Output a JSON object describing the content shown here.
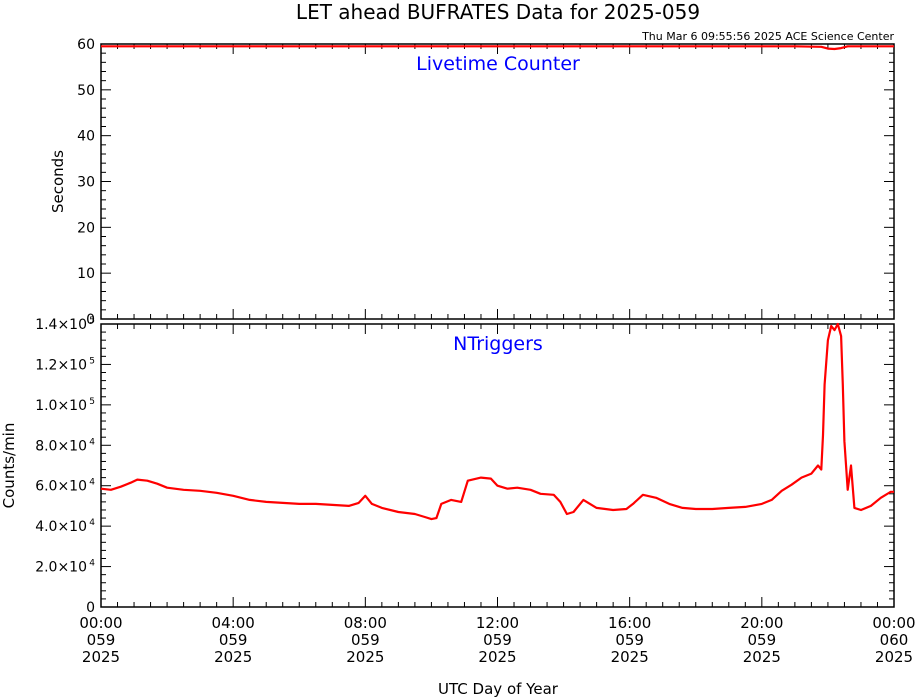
{
  "header": {
    "title": "LET ahead BUFRATES Data for 2025-059",
    "timestamp": "Thu Mar  6 09:55:56 2025 ACE Science Center"
  },
  "colors": {
    "axis": "#000000",
    "series": "#ff0000",
    "panel_label": "#0000ff"
  },
  "xaxis": {
    "label": "UTC Day of Year",
    "ticks": [
      {
        "time": "00:00",
        "doy": "059",
        "year": "2025"
      },
      {
        "time": "04:00",
        "doy": "059",
        "year": "2025"
      },
      {
        "time": "08:00",
        "doy": "059",
        "year": "2025"
      },
      {
        "time": "12:00",
        "doy": "059",
        "year": "2025"
      },
      {
        "time": "16:00",
        "doy": "059",
        "year": "2025"
      },
      {
        "time": "20:00",
        "doy": "059",
        "year": "2025"
      },
      {
        "time": "00:00",
        "doy": "060",
        "year": "2025"
      }
    ]
  },
  "chart_data": [
    {
      "type": "line",
      "panel_label": "Livetime Counter",
      "ylabel": "Seconds",
      "xlim": [
        0,
        24
      ],
      "ylim": [
        0,
        60
      ],
      "yticks": [
        {
          "value": 0,
          "base": "0"
        },
        {
          "value": 10,
          "base": "10"
        },
        {
          "value": 20,
          "base": "20"
        },
        {
          "value": 30,
          "base": "30"
        },
        {
          "value": 40,
          "base": "40"
        },
        {
          "value": 50,
          "base": "50"
        },
        {
          "value": 60,
          "base": "60"
        }
      ],
      "series": [
        {
          "x": [
            0,
            1,
            2,
            3,
            4,
            5,
            6,
            7,
            8,
            9,
            10,
            11,
            12,
            13,
            14,
            15,
            16,
            17,
            18,
            19,
            20,
            21,
            21.8,
            22.0,
            22.2,
            22.4,
            22.6,
            23,
            24
          ],
          "y": [
            59.5,
            59.5,
            59.5,
            59.5,
            59.5,
            59.5,
            59.5,
            59.5,
            59.5,
            59.5,
            59.5,
            59.5,
            59.5,
            59.5,
            59.5,
            59.5,
            59.5,
            59.5,
            59.5,
            59.5,
            59.5,
            59.5,
            59.4,
            59.0,
            58.9,
            59.1,
            59.5,
            59.5,
            59.5
          ]
        }
      ]
    },
    {
      "type": "line",
      "panel_label": "NTriggers",
      "ylabel": "Counts/min",
      "xlim": [
        0,
        24
      ],
      "ylim": [
        0,
        140000
      ],
      "yticks": [
        {
          "value": 0,
          "base": "0",
          "exp": ""
        },
        {
          "value": 20000,
          "base": "2.0×10",
          "exp": "4"
        },
        {
          "value": 40000,
          "base": "4.0×10",
          "exp": "4"
        },
        {
          "value": 60000,
          "base": "6.0×10",
          "exp": "4"
        },
        {
          "value": 80000,
          "base": "8.0×10",
          "exp": "4"
        },
        {
          "value": 100000,
          "base": "1.0×10",
          "exp": "5"
        },
        {
          "value": 120000,
          "base": "1.2×10",
          "exp": "5"
        },
        {
          "value": 140000,
          "base": "1.4×10",
          "exp": "5"
        }
      ],
      "series": [
        {
          "x": [
            0,
            0.3,
            0.6,
            0.9,
            1.1,
            1.4,
            1.7,
            2.0,
            2.5,
            3.0,
            3.5,
            4.0,
            4.5,
            5.0,
            5.5,
            6.0,
            6.5,
            7.0,
            7.5,
            7.8,
            8.0,
            8.2,
            8.5,
            9.0,
            9.5,
            9.8,
            10.0,
            10.15,
            10.3,
            10.6,
            10.9,
            11.1,
            11.5,
            11.8,
            12.0,
            12.3,
            12.6,
            13.0,
            13.3,
            13.7,
            13.9,
            14.1,
            14.3,
            14.6,
            15.0,
            15.5,
            15.9,
            16.1,
            16.4,
            16.8,
            17.2,
            17.6,
            18.0,
            18.5,
            19.0,
            19.5,
            20.0,
            20.3,
            20.6,
            20.9,
            21.2,
            21.5,
            21.7,
            21.8,
            21.85,
            21.9,
            22.0,
            22.1,
            22.2,
            22.3,
            22.4,
            22.45,
            22.5,
            22.6,
            22.7,
            22.8,
            23.0,
            23.3,
            23.6,
            23.9,
            24.0
          ],
          "y": [
            58500,
            58000,
            59500,
            61500,
            63000,
            62500,
            61000,
            59000,
            58000,
            57500,
            56500,
            55000,
            53000,
            52000,
            51500,
            51000,
            51000,
            50500,
            50000,
            51500,
            55000,
            51000,
            49000,
            47000,
            46000,
            44500,
            43500,
            44000,
            51000,
            53000,
            52000,
            62500,
            64000,
            63500,
            60000,
            58500,
            59000,
            58000,
            56000,
            55500,
            52000,
            46000,
            47000,
            53000,
            49000,
            48000,
            48500,
            51000,
            55500,
            54000,
            51000,
            49000,
            48500,
            48500,
            49000,
            49500,
            51000,
            53000,
            57500,
            60500,
            64000,
            66000,
            70000,
            68000,
            85000,
            110000,
            132000,
            139000,
            137000,
            140000,
            134000,
            110000,
            82000,
            58000,
            70000,
            49000,
            48000,
            50000,
            54000,
            57000,
            57000
          ]
        }
      ]
    }
  ]
}
